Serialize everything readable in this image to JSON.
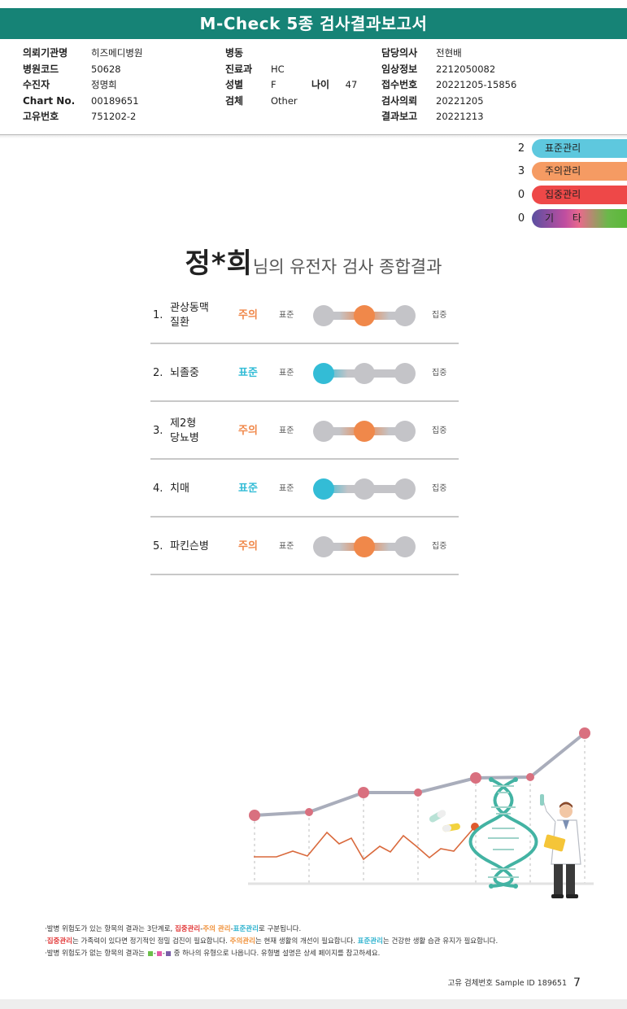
{
  "header": {
    "title": "M-Check 5종 검사결과보고서"
  },
  "info": {
    "col1": [
      {
        "label": "의뢰기관명",
        "value": "히즈메디병원"
      },
      {
        "label": "병원코드",
        "value": "50628"
      },
      {
        "label": "수진자",
        "value": "정명희"
      },
      {
        "label": "Chart No.",
        "value": "00189651"
      },
      {
        "label": "고유번호",
        "value": "751202-2"
      }
    ],
    "col2": [
      {
        "label": "병동",
        "value": ""
      },
      {
        "label": "진료과",
        "value": "HC"
      },
      {
        "label": "성별",
        "value": "F"
      },
      {
        "label": "검체",
        "value": "Other"
      }
    ],
    "age": {
      "label": "나이",
      "value": "47"
    },
    "col3": [
      {
        "label": "담당의사",
        "value": "전현배"
      },
      {
        "label": "임상정보",
        "value": "2212050082"
      },
      {
        "label": "접수번호",
        "value": "20221205-15856"
      },
      {
        "label": "검사의뢰",
        "value": "20221205"
      },
      {
        "label": "결과보고",
        "value": "20221213"
      }
    ]
  },
  "legend": [
    {
      "count": "2",
      "label": "표준관리",
      "color": "#5ec8de"
    },
    {
      "count": "3",
      "label": "주의관리",
      "color": "#f59b63"
    },
    {
      "count": "0",
      "label": "집중관리",
      "color": "#ee4848"
    },
    {
      "count": "0",
      "label": "기      타",
      "color": "gradient"
    }
  ],
  "summary": {
    "name": "정*희",
    "rest": "님의 유전자 검사 종합결과"
  },
  "results": [
    {
      "num": "1.",
      "name": "관상동맥\n질환",
      "status": "주의",
      "level": 1,
      "low": "표준",
      "high": "집중"
    },
    {
      "num": "2.",
      "name": "뇌졸중",
      "status": "표준",
      "level": 0,
      "low": "표준",
      "high": "집중"
    },
    {
      "num": "3.",
      "name": "제2형\n당뇨병",
      "status": "주의",
      "level": 1,
      "low": "표준",
      "high": "집중"
    },
    {
      "num": "4.",
      "name": "치매",
      "status": "표준",
      "level": 0,
      "low": "표준",
      "high": "집중"
    },
    {
      "num": "5.",
      "name": "파킨슨병",
      "status": "주의",
      "level": 1,
      "low": "표준",
      "high": "집중"
    }
  ],
  "colors": {
    "standard": "#33bcd6",
    "caution": "#f0884a",
    "intensive": "#ee4848",
    "brand": "#168376"
  },
  "notes": {
    "n1": {
      "a": "·발병 위험도가 있는 항목의 결과는 3단계로, ",
      "b": "집중관리",
      "c": "-",
      "d": "주의 관리",
      "e": "-",
      "f": "표준관리",
      "g": "로 구분됩니다."
    },
    "n2": {
      "a": "·",
      "b": "집중관리",
      "c": "는 가족력이 있다면 정기적인 정밀 검진이 필요합니다. ",
      "d": "주의관리",
      "e": "는 현재 생활의 개선이 필요합니다. ",
      "f": "표준관리",
      "g": "는 건강한 생활 습관 유지가 필요합니다."
    },
    "n3": {
      "a": "·발병 위험도가 없는 항목의 결과는 ",
      "b": "중 하나의 유형으로 나옵니다. 유형별 설명은 상세 페이지를 참고하세요."
    }
  },
  "footer": {
    "sample_id": "고유 검체번호 Sample ID 189651",
    "page": "7"
  }
}
